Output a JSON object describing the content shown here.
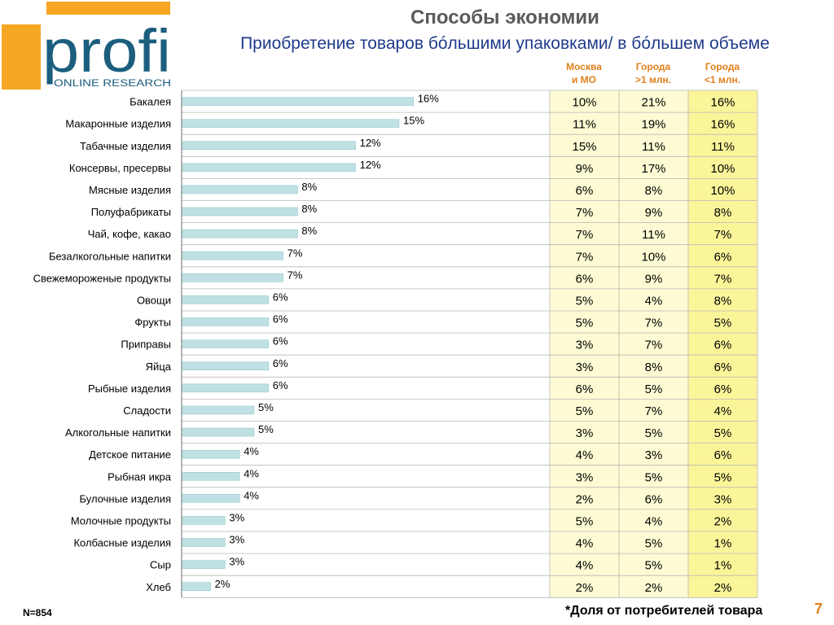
{
  "brand": {
    "logo_text": "profi",
    "logo_subtext": "ONLINE RESEARCH",
    "orange": "#f5a623",
    "blue": "#1b5e7e"
  },
  "title": "Способы экономии",
  "subtitle": "Приобретение товаров бóльшими упаковками/ в бóльшем объеме",
  "table_headers": [
    [
      "Москва",
      "и МО"
    ],
    [
      "Города",
      ">1 млн."
    ],
    [
      "Города",
      "<1 млн."
    ]
  ],
  "colors": {
    "bar": "#bfe1e4",
    "bar_border": "#8fc3c8",
    "table_fill": "#fdfbd3",
    "table_fill_dark": "#fbf59a",
    "table_grid": "#b8b8b8",
    "header_text": "#e0801c",
    "subtitle_text": "#1f3a8a"
  },
  "footer": {
    "n_label": "N=854",
    "note": "*Доля  от потребителей товара",
    "page": "7"
  },
  "chart_data": {
    "type": "bar",
    "orientation": "horizontal",
    "xlim": [
      0,
      21
    ],
    "grid": false,
    "categories": [
      "Бакалея",
      "Макаронные изделия",
      "Табачные изделия",
      "Консервы, пресервы",
      "Мясные изделия",
      "Полуфабрикаты",
      "Чай, кофе, какао",
      "Безалкогольные напитки",
      "Свежемороженые продукты",
      "Овощи",
      "Фрукты",
      "Приправы",
      "Яйца",
      "Рыбные изделия",
      "Сладости",
      "Алкогольные напитки",
      "Детское питание",
      "Рыбная икра",
      "Булочные изделия",
      "Молочные продукты",
      "Колбасные изделия",
      "Сыр",
      "Хлеб"
    ],
    "values": [
      16,
      15,
      12,
      12,
      8,
      8,
      8,
      7,
      7,
      6,
      6,
      6,
      6,
      6,
      5,
      5,
      4,
      4,
      4,
      3,
      3,
      3,
      2
    ],
    "value_labels": [
      "16%",
      "15%",
      "12%",
      "12%",
      "8%",
      "8%",
      "8%",
      "7%",
      "7%",
      "6%",
      "6%",
      "6%",
      "6%",
      "6%",
      "5%",
      "5%",
      "4%",
      "4%",
      "4%",
      "3%",
      "3%",
      "3%",
      "2%"
    ],
    "table": {
      "columns": [
        "Москва и МО",
        "Города >1 млн.",
        "Города <1 млн."
      ],
      "rows": [
        [
          "10%",
          "21%",
          "16%"
        ],
        [
          "11%",
          "19%",
          "16%"
        ],
        [
          "15%",
          "11%",
          "11%"
        ],
        [
          "9%",
          "17%",
          "10%"
        ],
        [
          "6%",
          "8%",
          "10%"
        ],
        [
          "7%",
          "9%",
          "8%"
        ],
        [
          "7%",
          "11%",
          "7%"
        ],
        [
          "7%",
          "10%",
          "6%"
        ],
        [
          "6%",
          "9%",
          "7%"
        ],
        [
          "5%",
          "4%",
          "8%"
        ],
        [
          "5%",
          "7%",
          "5%"
        ],
        [
          "3%",
          "7%",
          "6%"
        ],
        [
          "3%",
          "8%",
          "6%"
        ],
        [
          "6%",
          "5%",
          "6%"
        ],
        [
          "5%",
          "7%",
          "4%"
        ],
        [
          "3%",
          "5%",
          "5%"
        ],
        [
          "4%",
          "3%",
          "6%"
        ],
        [
          "3%",
          "5%",
          "5%"
        ],
        [
          "2%",
          "6%",
          "3%"
        ],
        [
          "5%",
          "4%",
          "2%"
        ],
        [
          "4%",
          "5%",
          "1%"
        ],
        [
          "4%",
          "5%",
          "1%"
        ],
        [
          "2%",
          "2%",
          "2%"
        ]
      ]
    }
  }
}
